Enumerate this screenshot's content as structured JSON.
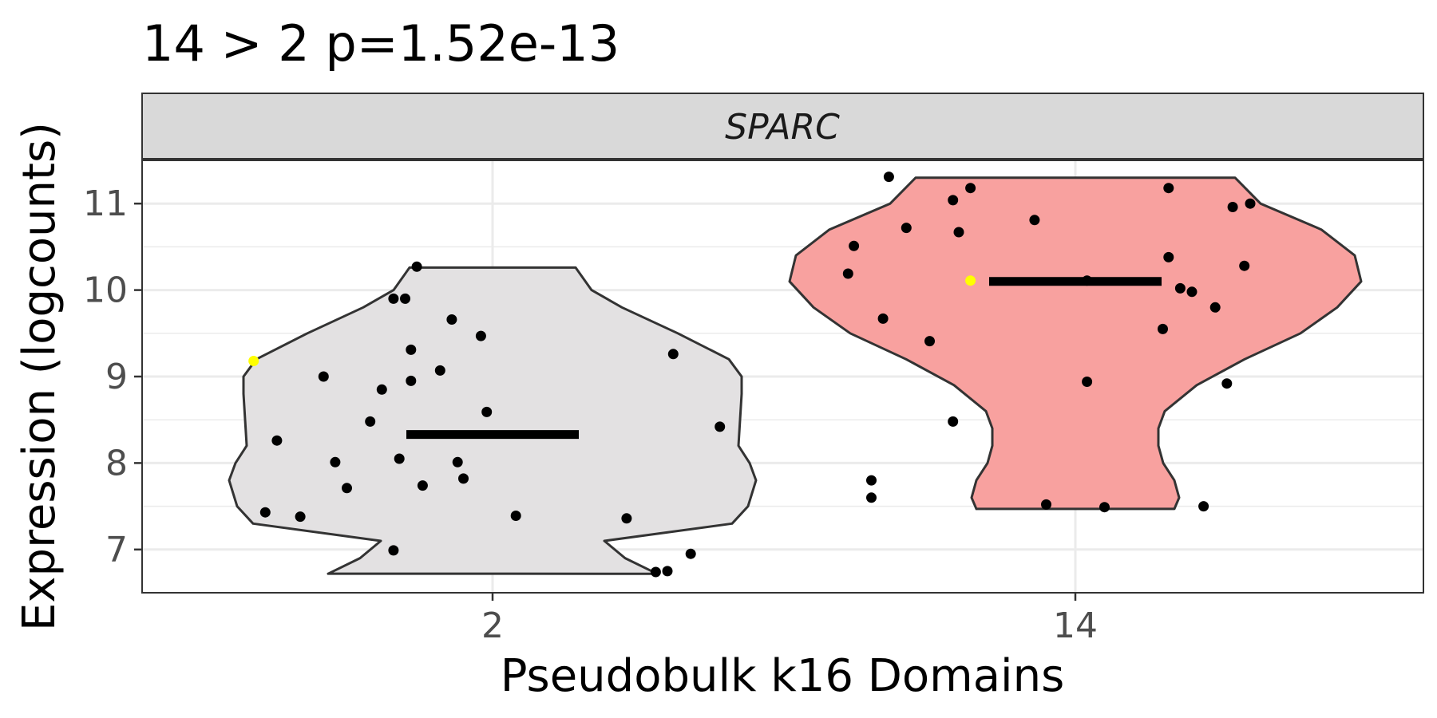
{
  "chart_data": {
    "type": "violin",
    "title": "14 > 2 p=1.52e-13",
    "facet_label": "SPARC",
    "xlabel": "Pseudobulk k16 Domains",
    "ylabel": "Expression (logcounts)",
    "categories": [
      "2",
      "14"
    ],
    "ylim": [
      6.5,
      11.5
    ],
    "yticks": [
      7,
      8,
      9,
      10,
      11
    ],
    "grid": true,
    "legend": "none",
    "colors": {
      "violin_2": "#e3e1e2",
      "violin_14": "#f8a19f",
      "outline": "#333333",
      "point": "#000000",
      "highlight_point": "#ffff00",
      "strip_bg": "#d9d9d9",
      "grid": "#ebebeb"
    },
    "series": [
      {
        "category": "2",
        "median": 8.33,
        "violin_range": [
          6.72,
          10.26
        ],
        "points": [
          {
            "x": -0.41,
            "y": 9.18,
            "highlight": true
          },
          {
            "x": -0.37,
            "y": 8.26
          },
          {
            "x": -0.39,
            "y": 7.43
          },
          {
            "x": -0.33,
            "y": 7.38
          },
          {
            "x": -0.29,
            "y": 9.0
          },
          {
            "x": -0.27,
            "y": 8.01
          },
          {
            "x": -0.25,
            "y": 7.71
          },
          {
            "x": -0.21,
            "y": 8.48
          },
          {
            "x": -0.19,
            "y": 8.85
          },
          {
            "x": -0.17,
            "y": 6.99
          },
          {
            "x": -0.17,
            "y": 9.9
          },
          {
            "x": -0.15,
            "y": 9.9
          },
          {
            "x": -0.16,
            "y": 8.05
          },
          {
            "x": -0.14,
            "y": 9.31
          },
          {
            "x": -0.14,
            "y": 8.95
          },
          {
            "x": -0.13,
            "y": 10.27
          },
          {
            "x": -0.12,
            "y": 7.74
          },
          {
            "x": -0.09,
            "y": 9.07
          },
          {
            "x": -0.07,
            "y": 9.66
          },
          {
            "x": -0.06,
            "y": 8.01
          },
          {
            "x": -0.05,
            "y": 7.82
          },
          {
            "x": -0.02,
            "y": 9.47
          },
          {
            "x": -0.01,
            "y": 8.59
          },
          {
            "x": 0.04,
            "y": 7.39
          },
          {
            "x": 0.23,
            "y": 7.36
          },
          {
            "x": 0.28,
            "y": 6.74
          },
          {
            "x": 0.3,
            "y": 6.75
          },
          {
            "x": 0.31,
            "y": 9.26
          },
          {
            "x": 0.34,
            "y": 6.95
          },
          {
            "x": 0.39,
            "y": 8.42
          }
        ]
      },
      {
        "category": "14",
        "median": 10.1,
        "violin_range": [
          7.47,
          11.3
        ],
        "points": [
          {
            "x": -0.18,
            "y": 10.11,
            "highlight": true
          },
          {
            "x": -0.39,
            "y": 10.19
          },
          {
            "x": -0.38,
            "y": 10.51
          },
          {
            "x": -0.35,
            "y": 7.8
          },
          {
            "x": -0.35,
            "y": 7.6
          },
          {
            "x": -0.33,
            "y": 9.67
          },
          {
            "x": -0.32,
            "y": 11.31
          },
          {
            "x": -0.29,
            "y": 10.72
          },
          {
            "x": -0.25,
            "y": 9.41
          },
          {
            "x": -0.21,
            "y": 11.04
          },
          {
            "x": -0.21,
            "y": 8.48
          },
          {
            "x": -0.2,
            "y": 10.67
          },
          {
            "x": -0.18,
            "y": 11.18
          },
          {
            "x": -0.07,
            "y": 10.81
          },
          {
            "x": -0.05,
            "y": 7.52
          },
          {
            "x": 0.02,
            "y": 8.94
          },
          {
            "x": 0.02,
            "y": 10.11
          },
          {
            "x": 0.05,
            "y": 7.49
          },
          {
            "x": 0.15,
            "y": 9.55
          },
          {
            "x": 0.16,
            "y": 11.18
          },
          {
            "x": 0.16,
            "y": 10.38
          },
          {
            "x": 0.18,
            "y": 10.02
          },
          {
            "x": 0.2,
            "y": 9.98
          },
          {
            "x": 0.22,
            "y": 7.5
          },
          {
            "x": 0.24,
            "y": 9.8
          },
          {
            "x": 0.26,
            "y": 8.92
          },
          {
            "x": 0.27,
            "y": 10.96
          },
          {
            "x": 0.29,
            "y": 10.28
          },
          {
            "x": 0.3,
            "y": 11.0
          }
        ]
      }
    ]
  }
}
